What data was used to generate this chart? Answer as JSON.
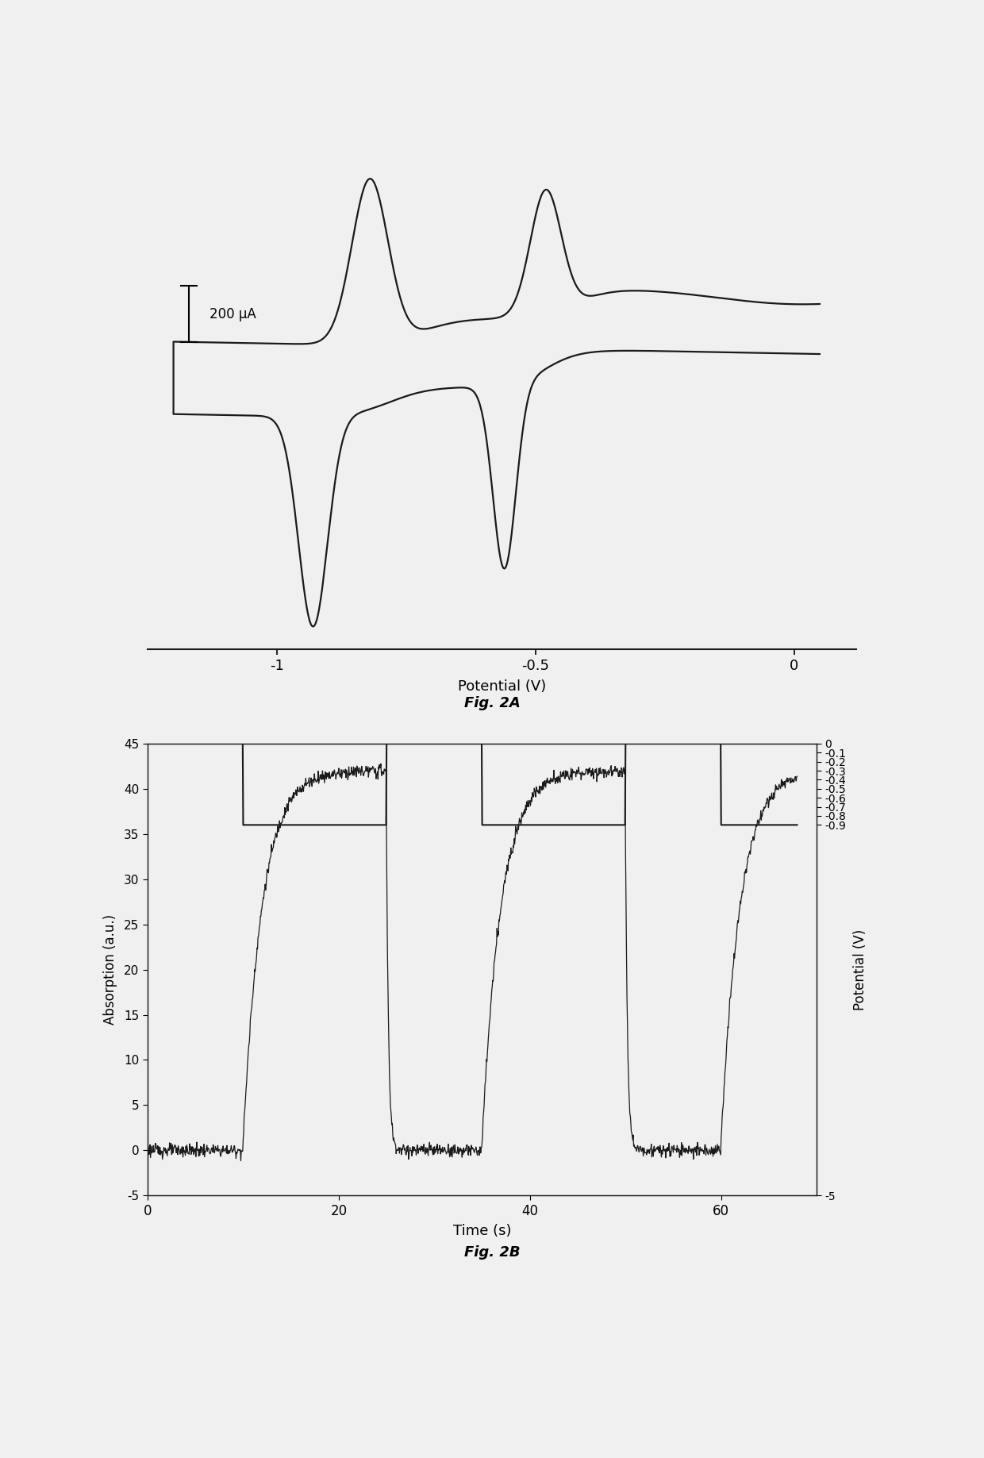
{
  "fig2a": {
    "xlabel": "Potential (V)",
    "xlabel_fontsize": 13,
    "scale_bar_label": "200 μA",
    "xlim": [
      -1.25,
      0.12
    ],
    "xticks": [
      -1.0,
      -0.5,
      0.0
    ],
    "xticklabels": [
      "-1",
      "-0.5",
      "0"
    ],
    "line_color": "#1a1a1a",
    "figcaption": "Fig. 2A",
    "figcaption_fontstyle": "italic",
    "figcaption_fontweight": "bold"
  },
  "fig2b": {
    "xlabel": "Time (s)",
    "ylabel_left": "Absorption (a.u.)",
    "ylabel_right": "Potential (V)",
    "xlabel_fontsize": 13,
    "ylabel_fontsize": 12,
    "xlim": [
      0,
      70
    ],
    "ylim_left": [
      -5,
      45
    ],
    "ylim_right": [
      -5,
      0
    ],
    "xticks": [
      0,
      20,
      40,
      60
    ],
    "yticks_left": [
      -5,
      0,
      5,
      10,
      15,
      20,
      25,
      30,
      35,
      40,
      45
    ],
    "yticks_right": [
      -5,
      -0.9,
      -0.8,
      -0.7,
      -0.6,
      -0.5,
      -0.4,
      -0.3,
      -0.2,
      -0.1,
      0.0
    ],
    "yticklabels_right": [
      "-5",
      "-0.9",
      "-0.8",
      "-0.7",
      "-0.6",
      "-0.5",
      "-0.4",
      "-0.3",
      "-0.2",
      "-0.1",
      "0"
    ],
    "line_color": "#1a1a1a",
    "step_color": "#1a1a1a",
    "figcaption": "Fig. 2B",
    "figcaption_fontstyle": "italic",
    "figcaption_fontweight": "bold"
  }
}
